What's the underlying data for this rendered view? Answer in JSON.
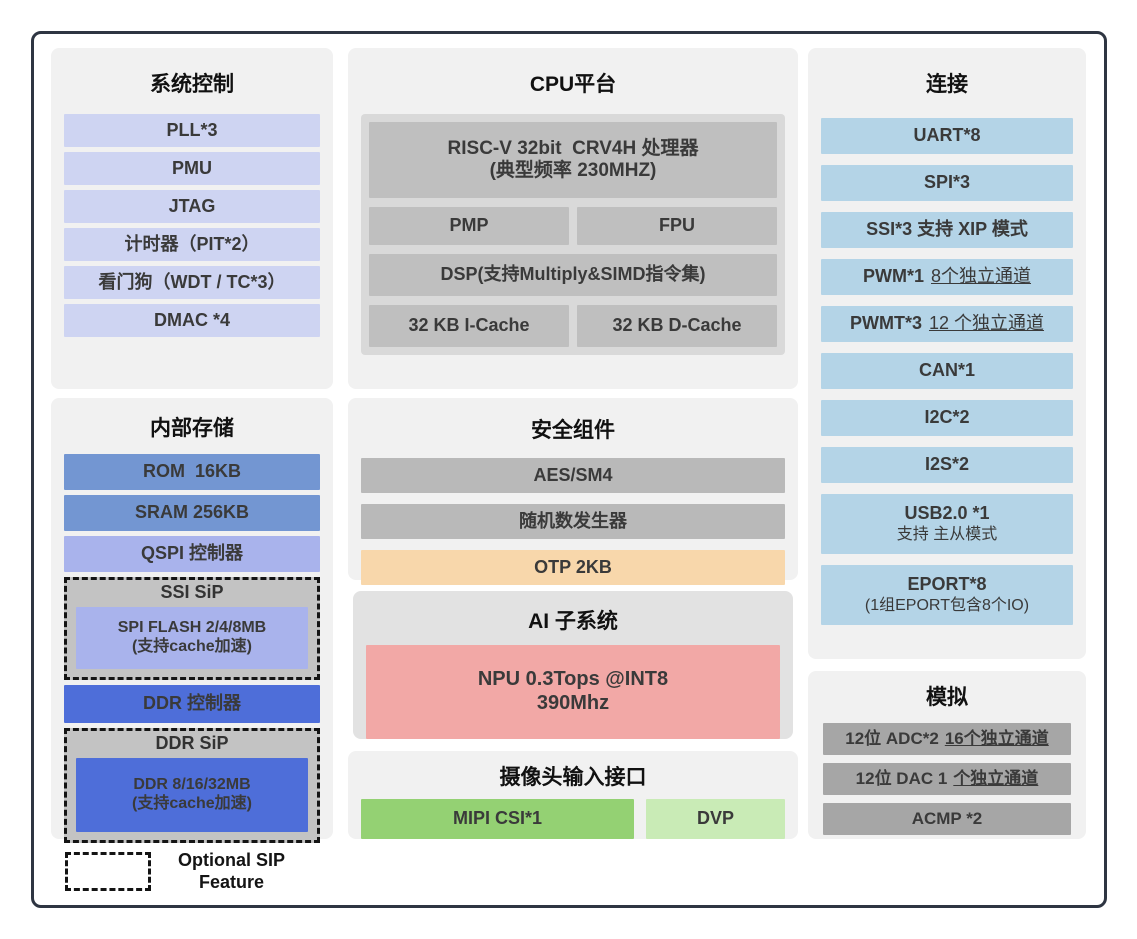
{
  "left": {
    "system": {
      "title": "系统控制",
      "items": [
        "PLL*3",
        "PMU",
        "JTAG",
        "计时器（PIT*2）",
        "看门狗（WDT / TC*3）",
        "DMAC *4"
      ]
    },
    "storage": {
      "title": "内部存储",
      "rom": "ROM  16KB",
      "sram": "SRAM 256KB",
      "qspi": "QSPI 控制器",
      "ssi_sip_title": "SSI SiP",
      "ssi_sip_body": "SPI FLASH 2/4/8MB\n(支持cache加速)",
      "ddr_ctrl": "DDR 控制器",
      "ddr_sip_title": "DDR SiP",
      "ddr_sip_body": "DDR 8/16/32MB\n(支持cache加速)"
    },
    "legend_label": "Optional SIP\nFeature"
  },
  "middle": {
    "cpu": {
      "title": "CPU平台",
      "core": "RISC-V 32bit  CRV4H 处理器\n(典型频率 230MHZ)",
      "pmp": "PMP",
      "fpu": "FPU",
      "dsp": "DSP(支持Multiply&SIMD指令集)",
      "icache": "32 KB I-Cache",
      "dcache": "32 KB D-Cache"
    },
    "security": {
      "title": "安全组件",
      "aes": "AES/SM4",
      "rng": "随机数发生器",
      "otp": "OTP 2KB"
    },
    "ai": {
      "title": "AI 子系统",
      "npu": "NPU 0.3Tops @INT8\n390Mhz"
    },
    "camera": {
      "title": "摄像头输入接口",
      "mipi": "MIPI CSI*1",
      "dvp": "DVP"
    }
  },
  "right": {
    "connectivity": {
      "title": "连接",
      "items": [
        {
          "main": "UART*8"
        },
        {
          "main": "SPI*3"
        },
        {
          "main": "SSI*3 支持 XIP 模式"
        },
        {
          "main": "PWM*1",
          "sub": "8个独立通道"
        },
        {
          "main": "PWMT*3",
          "sub": "12 个独立通道"
        },
        {
          "main": "CAN*1"
        },
        {
          "main": "I2C*2"
        },
        {
          "main": "I2S*2"
        },
        {
          "main": "USB2.0 *1",
          "line2": "支持 主从模式"
        },
        {
          "main": "EPORT*8",
          "line2": "(1组EPORT包含8个IO)"
        }
      ]
    },
    "analog": {
      "title": "模拟",
      "items": [
        {
          "main": "12位 ADC*2",
          "sub": "16个独立通道"
        },
        {
          "main": "12位 DAC 1",
          "sub": "个独立通道"
        },
        {
          "main": "ACMP *2"
        }
      ]
    }
  },
  "colors": {
    "frame_border": "#2e3542",
    "panel_bg": "#f1f1f1",
    "ai_panel_bg": "#e2e2e2",
    "system_item_lavender": "#ced4f2",
    "lavender": "#a9b3ec",
    "memory_blue": "#7396d2",
    "ddr_blue": "#4e6ed9",
    "sip_gray": "#c3c3c3",
    "cpu_panel_gray": "#d9d9d9",
    "cpu_block_gray": "#bfbfbf",
    "security_block_gray": "#b9b9b9",
    "otp_orange": "#f8d7ab",
    "npu_pink": "#f2a8a6",
    "mipi_green": "#94d173",
    "dvp_green": "#c9ebb6",
    "connectivity_blue": "#b4d4e7",
    "analog_gray": "#a6a6a6"
  }
}
